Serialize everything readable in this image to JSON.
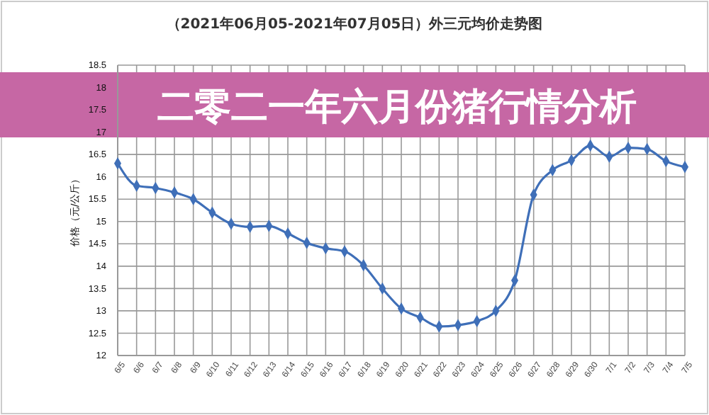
{
  "chart_data": {
    "type": "line",
    "title": "（2021年06月05-2021年07月05日）外三元均价走势图",
    "ylabel": "价格（元/公斤）",
    "annotations": [
      "二零二一年六月份猪行情分析"
    ],
    "categories": [
      "6/5",
      "6/6",
      "6/7",
      "6/8",
      "6/9",
      "6/10",
      "6/11",
      "6/12",
      "6/13",
      "6/14",
      "6/15",
      "6/16",
      "6/17",
      "6/18",
      "6/19",
      "6/20",
      "6/21",
      "6/22",
      "6/23",
      "6/24",
      "6/25",
      "6/26",
      "6/27",
      "6/28",
      "6/29",
      "6/30",
      "7/1",
      "7/2",
      "7/3",
      "7/4",
      "7/5"
    ],
    "series": [
      {
        "color": "#3f6fb8",
        "values": [
          16.3,
          15.8,
          15.75,
          15.65,
          15.5,
          15.2,
          14.95,
          14.88,
          14.9,
          14.73,
          14.52,
          14.4,
          14.33,
          14.02,
          13.5,
          13.05,
          12.85,
          12.65,
          12.68,
          12.77,
          13.0,
          13.68,
          15.6,
          16.15,
          16.37,
          16.7,
          16.45,
          16.65,
          16.62,
          16.35,
          16.22
        ]
      }
    ],
    "ylim": [
      12,
      18.5
    ],
    "yticks": [
      12,
      12.5,
      13,
      13.5,
      14,
      14.5,
      15,
      15.5,
      16,
      16.5,
      17,
      17.5,
      18,
      18.5
    ],
    "grid": true,
    "marker": "diamond",
    "line_style": "solid"
  }
}
